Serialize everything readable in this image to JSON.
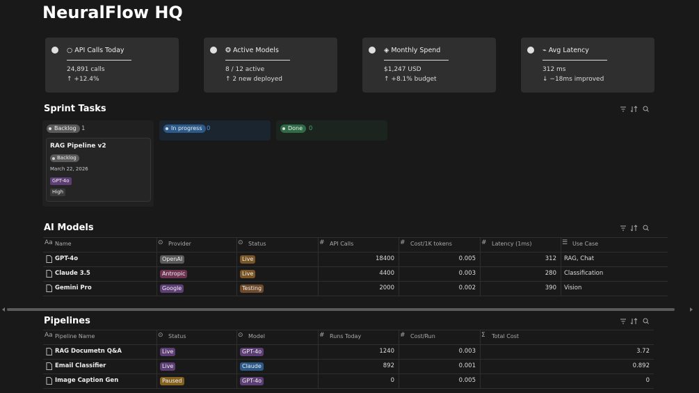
{
  "header": {
    "title": "NeuralFlow HQ"
  },
  "cards": [
    {
      "title": "○ API Calls Today",
      "line1": "24,891 calls",
      "line2": "↑ +12.4%"
    },
    {
      "title": "❂ Active Models",
      "line1": "8 / 12 active",
      "line2": "↑ 2 new deployed"
    },
    {
      "title": "◈ Monthly Spend",
      "line1": "$1,247 USD",
      "line2": "↑ +8.1% budget"
    },
    {
      "title": "⌁ Avg Latency",
      "line1": "312 ms",
      "line2": "↓ −18ms improved"
    }
  ],
  "board": {
    "title": "Sprint Tasks",
    "columns": [
      {
        "label": "Backlog",
        "count": 1,
        "color": "#5a5a5a",
        "count_color": "#bbbbbb",
        "bg": "#202020"
      },
      {
        "label": "In progress",
        "count": 0,
        "color": "#2b5a8a",
        "count_color": "#4a8fd0",
        "bg": "#1b2530"
      },
      {
        "label": "Done",
        "count": 0,
        "color": "#2f6b45",
        "count_color": "#4aa06a",
        "bg": "#1b241e"
      }
    ],
    "card": {
      "title": "RAG Pipeline v2",
      "status": "Backlog",
      "date": "March 22, 2026",
      "model": "GPT-4o",
      "priority": "High"
    }
  },
  "tables": [
    {
      "title": "AI Models",
      "columns": [
        {
          "icon": "Aa",
          "label": "Name"
        },
        {
          "icon": "⊙",
          "label": "Provider"
        },
        {
          "icon": "⊙",
          "label": "Status"
        },
        {
          "icon": "#",
          "label": "API Calls"
        },
        {
          "icon": "#",
          "label": "Cost/1K tokens"
        },
        {
          "icon": "#",
          "label": "Latency (1ms)"
        },
        {
          "icon": "☰",
          "label": "Use Case"
        }
      ],
      "rows": [
        [
          "GPT-4o",
          {
            "text": "OpenAI",
            "color": "#5a5a5a"
          },
          {
            "text": "Live",
            "color": "#7a5526"
          },
          18400,
          0.005,
          312,
          "RAG, Chat"
        ],
        [
          "Claude 3.5",
          {
            "text": "Antropic",
            "color": "#6e3350"
          },
          {
            "text": "Live",
            "color": "#7a5526"
          },
          4400,
          0.003,
          280,
          "Classification"
        ],
        [
          "Gemini Pro",
          {
            "text": "Google",
            "color": "#5d3f75"
          },
          {
            "text": "Testing",
            "color": "#6e4a2a"
          },
          2000,
          0.002,
          390,
          "Vision"
        ]
      ]
    },
    {
      "title": "Pipelines",
      "columns": [
        {
          "icon": "Aa",
          "label": "Pipeline Name"
        },
        {
          "icon": "⊙",
          "label": "Status"
        },
        {
          "icon": "⊙",
          "label": "Model"
        },
        {
          "icon": "#",
          "label": "Runs Today"
        },
        {
          "icon": "#",
          "label": "Cost/Run"
        },
        {
          "icon": "Σ",
          "label": "Total Cost"
        }
      ],
      "rows": [
        [
          "RAG Documetn Q&A",
          {
            "text": "Live",
            "color": "#5d3f75"
          },
          {
            "text": "GPT-4o",
            "color": "#5d3f75"
          },
          1240,
          0.003,
          3.72
        ],
        [
          "Email Classifier",
          {
            "text": "Live",
            "color": "#5d3f75"
          },
          {
            "text": "Claude",
            "color": "#2b5a8a"
          },
          892,
          0.001,
          0.892
        ],
        [
          "Image Caption Gen",
          {
            "text": "Paused",
            "color": "#85621f"
          },
          {
            "text": "GPT-4o",
            "color": "#5d3f75"
          },
          0,
          0.005,
          0
        ]
      ]
    }
  ]
}
